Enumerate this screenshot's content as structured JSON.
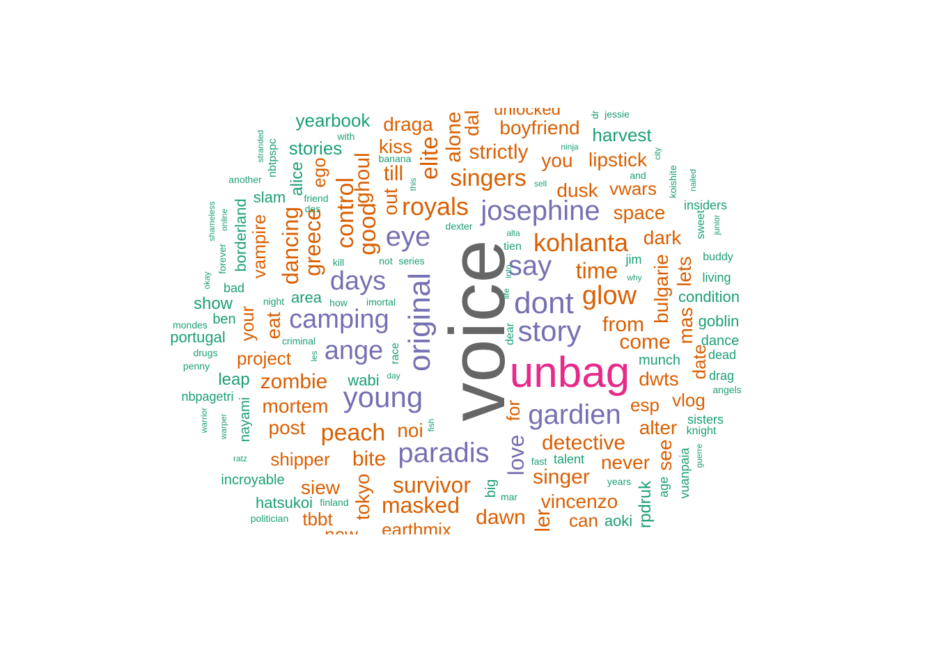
{
  "palette": {
    "gray": "#666666",
    "pink": "#e7298a",
    "purple": "#7570b3",
    "orange": "#d95f02",
    "teal": "#1b9e77"
  },
  "words": [
    {
      "text": "voice",
      "color": "gray"
    },
    {
      "text": "unbag",
      "color": "pink"
    },
    {
      "text": "josephine",
      "color": "purple"
    },
    {
      "text": "say",
      "color": "purple"
    },
    {
      "text": "dont",
      "color": "purple"
    },
    {
      "text": "story",
      "color": "purple"
    },
    {
      "text": "gardien",
      "color": "purple"
    },
    {
      "text": "paradis",
      "color": "purple"
    },
    {
      "text": "young",
      "color": "purple"
    },
    {
      "text": "ange",
      "color": "purple"
    },
    {
      "text": "camping",
      "color": "purple"
    },
    {
      "text": "days",
      "color": "purple"
    },
    {
      "text": "eye",
      "color": "purple"
    },
    {
      "text": "original",
      "color": "purple"
    },
    {
      "text": "love",
      "color": "purple"
    },
    {
      "text": "kohlanta",
      "color": "orange"
    },
    {
      "text": "glow",
      "color": "orange"
    },
    {
      "text": "time",
      "color": "orange"
    },
    {
      "text": "from",
      "color": "orange"
    },
    {
      "text": "come",
      "color": "orange"
    },
    {
      "text": "detective",
      "color": "orange"
    },
    {
      "text": "singer",
      "color": "orange"
    },
    {
      "text": "never",
      "color": "orange"
    },
    {
      "text": "survivor",
      "color": "orange"
    },
    {
      "text": "masked",
      "color": "orange"
    },
    {
      "text": "peach",
      "color": "orange"
    },
    {
      "text": "bite",
      "color": "orange"
    },
    {
      "text": "noi",
      "color": "orange"
    },
    {
      "text": "zombie",
      "color": "orange"
    },
    {
      "text": "mortem",
      "color": "orange"
    },
    {
      "text": "post",
      "color": "orange"
    },
    {
      "text": "shipper",
      "color": "orange"
    },
    {
      "text": "project",
      "color": "orange"
    },
    {
      "text": "royals",
      "color": "orange"
    },
    {
      "text": "singers",
      "color": "orange"
    },
    {
      "text": "strictly",
      "color": "orange"
    },
    {
      "text": "boyfriend",
      "color": "orange"
    },
    {
      "text": "unlocked",
      "color": "orange"
    },
    {
      "text": "dusk",
      "color": "orange"
    },
    {
      "text": "you",
      "color": "orange"
    },
    {
      "text": "lipstick",
      "color": "orange"
    },
    {
      "text": "vwars",
      "color": "orange"
    },
    {
      "text": "space",
      "color": "orange"
    },
    {
      "text": "dark",
      "color": "orange"
    },
    {
      "text": "draga",
      "color": "orange"
    },
    {
      "text": "kiss",
      "color": "orange"
    },
    {
      "text": "till",
      "color": "orange"
    },
    {
      "text": "elite",
      "color": "orange"
    },
    {
      "text": "alone",
      "color": "orange"
    },
    {
      "text": "dal",
      "color": "orange"
    },
    {
      "text": "out",
      "color": "orange"
    },
    {
      "text": "good",
      "color": "orange"
    },
    {
      "text": "ghoul",
      "color": "orange"
    },
    {
      "text": "control",
      "color": "orange"
    },
    {
      "text": "greece",
      "color": "orange"
    },
    {
      "text": "dancing",
      "color": "orange"
    },
    {
      "text": "ego",
      "color": "orange"
    },
    {
      "text": "vampire",
      "color": "orange"
    },
    {
      "text": "your",
      "color": "orange"
    },
    {
      "text": "eat",
      "color": "orange"
    },
    {
      "text": "bulgarie",
      "color": "orange"
    },
    {
      "text": "lets",
      "color": "orange"
    },
    {
      "text": "mas",
      "color": "orange"
    },
    {
      "text": "date",
      "color": "orange"
    },
    {
      "text": "dwts",
      "color": "orange"
    },
    {
      "text": "esp",
      "color": "orange"
    },
    {
      "text": "alter",
      "color": "orange"
    },
    {
      "text": "vlog",
      "color": "orange"
    },
    {
      "text": "see",
      "color": "orange"
    },
    {
      "text": "for",
      "color": "orange"
    },
    {
      "text": "vincenzo",
      "color": "orange"
    },
    {
      "text": "can",
      "color": "orange"
    },
    {
      "text": "dawn",
      "color": "orange"
    },
    {
      "text": "ler",
      "color": "orange"
    },
    {
      "text": "siew",
      "color": "orange"
    },
    {
      "text": "tbbt",
      "color": "orange"
    },
    {
      "text": "tokyo",
      "color": "orange"
    },
    {
      "text": "earthmix",
      "color": "orange"
    },
    {
      "text": "new",
      "color": "orange"
    },
    {
      "text": "rpdruk",
      "color": "teal"
    },
    {
      "text": "yearbook",
      "color": "teal"
    },
    {
      "text": "stories",
      "color": "teal"
    },
    {
      "text": "harvest",
      "color": "teal"
    },
    {
      "text": "alice",
      "color": "teal"
    },
    {
      "text": "slam",
      "color": "teal"
    },
    {
      "text": "borderland",
      "color": "teal"
    },
    {
      "text": "show",
      "color": "teal"
    },
    {
      "text": "area",
      "color": "teal"
    },
    {
      "text": "ben",
      "color": "teal"
    },
    {
      "text": "portugal",
      "color": "teal"
    },
    {
      "text": "bad",
      "color": "teal"
    },
    {
      "text": "leap",
      "color": "teal"
    },
    {
      "text": "wabi",
      "color": "teal"
    },
    {
      "text": "nbpagetri",
      "color": "teal"
    },
    {
      "text": "nayami",
      "color": "teal"
    },
    {
      "text": "incroyable",
      "color": "teal"
    },
    {
      "text": "hatsukoi",
      "color": "teal"
    },
    {
      "text": "finland",
      "color": "teal"
    },
    {
      "text": "politician",
      "color": "teal"
    },
    {
      "text": "big",
      "color": "teal"
    },
    {
      "text": "mar",
      "color": "teal"
    },
    {
      "text": "talent",
      "color": "teal"
    },
    {
      "text": "fast",
      "color": "teal"
    },
    {
      "text": "years",
      "color": "teal"
    },
    {
      "text": "age",
      "color": "teal"
    },
    {
      "text": "aoki",
      "color": "teal"
    },
    {
      "text": "vuanpaia",
      "color": "teal"
    },
    {
      "text": "guerre",
      "color": "teal"
    },
    {
      "text": "knight",
      "color": "teal"
    },
    {
      "text": "sisters",
      "color": "teal"
    },
    {
      "text": "angels",
      "color": "teal"
    },
    {
      "text": "drag",
      "color": "teal"
    },
    {
      "text": "dead",
      "color": "teal"
    },
    {
      "text": "dance",
      "color": "teal"
    },
    {
      "text": "goblin",
      "color": "teal"
    },
    {
      "text": "condition",
      "color": "teal"
    },
    {
      "text": "living",
      "color": "teal"
    },
    {
      "text": "buddy",
      "color": "teal"
    },
    {
      "text": "junior",
      "color": "teal"
    },
    {
      "text": "sweet",
      "color": "teal"
    },
    {
      "text": "insiders",
      "color": "teal"
    },
    {
      "text": "nailed",
      "color": "teal"
    },
    {
      "text": "koishite",
      "color": "teal"
    },
    {
      "text": "city",
      "color": "teal"
    },
    {
      "text": "and",
      "color": "teal"
    },
    {
      "text": "jessie",
      "color": "teal"
    },
    {
      "text": "dr",
      "color": "teal"
    },
    {
      "text": "ninja",
      "color": "teal"
    },
    {
      "text": "sell",
      "color": "teal"
    },
    {
      "text": "munch",
      "color": "teal"
    },
    {
      "text": "jim",
      "color": "teal"
    },
    {
      "text": "why",
      "color": "teal"
    },
    {
      "text": "alta",
      "color": "teal"
    },
    {
      "text": "tien",
      "color": "teal"
    },
    {
      "text": "into",
      "color": "teal"
    },
    {
      "text": "life",
      "color": "teal"
    },
    {
      "text": "dear",
      "color": "teal"
    },
    {
      "text": "dexter",
      "color": "teal"
    },
    {
      "text": "not",
      "color": "teal"
    },
    {
      "text": "series",
      "color": "teal"
    },
    {
      "text": "imortal",
      "color": "teal"
    },
    {
      "text": "how",
      "color": "teal"
    },
    {
      "text": "kill",
      "color": "teal"
    },
    {
      "text": "night",
      "color": "teal"
    },
    {
      "text": "criminal",
      "color": "teal"
    },
    {
      "text": "les",
      "color": "teal"
    },
    {
      "text": "race",
      "color": "teal"
    },
    {
      "text": "day",
      "color": "teal"
    },
    {
      "text": "fish",
      "color": "teal"
    },
    {
      "text": "banana",
      "color": "teal"
    },
    {
      "text": "this",
      "color": "teal"
    },
    {
      "text": "with",
      "color": "teal"
    },
    {
      "text": "friend",
      "color": "teal"
    },
    {
      "text": "des",
      "color": "teal"
    },
    {
      "text": "another",
      "color": "teal"
    },
    {
      "text": "stranded",
      "color": "teal"
    },
    {
      "text": "nbtpspc",
      "color": "teal"
    },
    {
      "text": "shameless",
      "color": "teal"
    },
    {
      "text": "online",
      "color": "teal"
    },
    {
      "text": "forever",
      "color": "teal"
    },
    {
      "text": "okay",
      "color": "teal"
    },
    {
      "text": "mondes",
      "color": "teal"
    },
    {
      "text": "drugs",
      "color": "teal"
    },
    {
      "text": "penny",
      "color": "teal"
    },
    {
      "text": "warrior",
      "color": "teal"
    },
    {
      "text": "warper",
      "color": "teal"
    },
    {
      "text": "ratz",
      "color": "teal"
    }
  ]
}
